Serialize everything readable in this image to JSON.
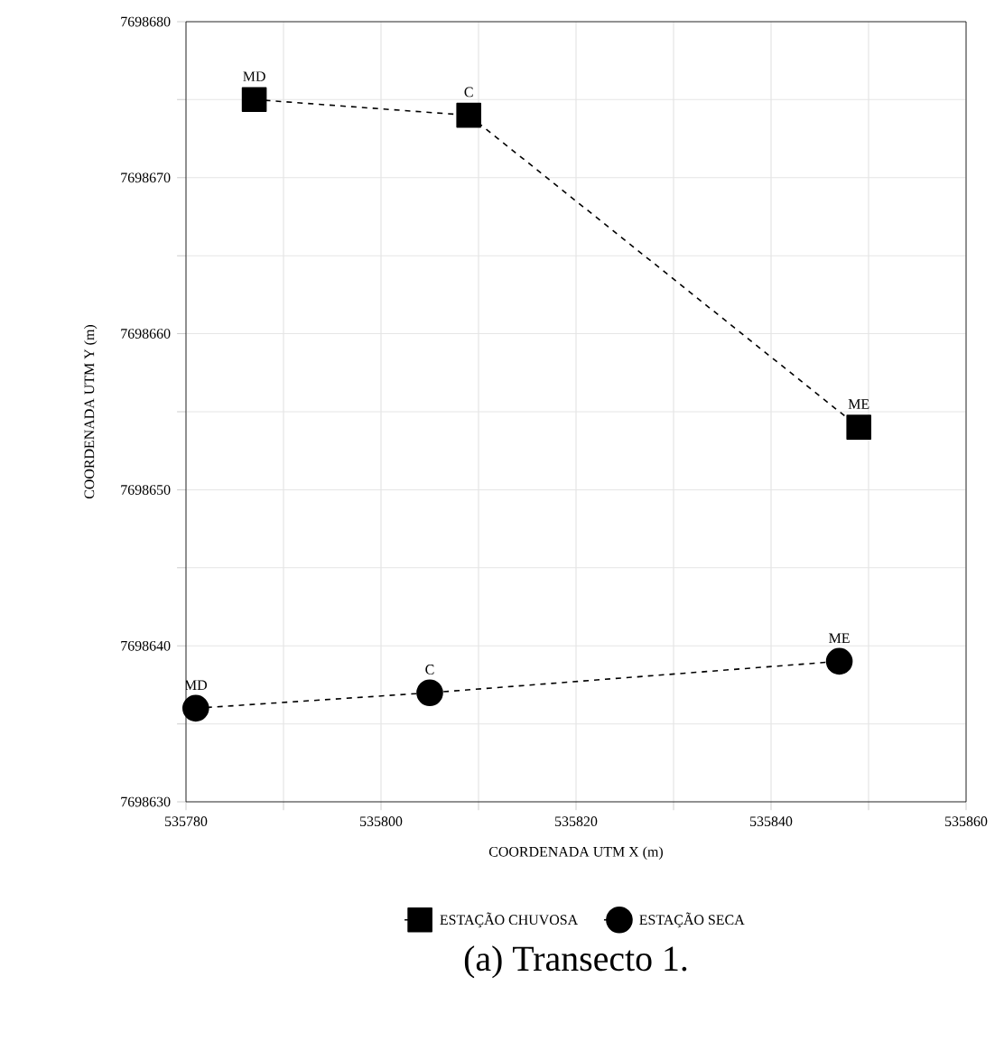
{
  "chart_data": {
    "type": "line",
    "title": "(a) Transecto 1.",
    "xlabel": "COORDENADA UTM X (m)",
    "ylabel": "COORDENADA UTM Y (m)",
    "series": [
      {
        "name": "ESTAÇÃO CHUVOSA",
        "color": "#000000",
        "marker": "square",
        "line_style": "dashed",
        "x": [
          535787,
          535809,
          535849
        ],
        "values": [
          7698675,
          7698674,
          7698654
        ]
      },
      {
        "name": "ESTAÇÃO SECA",
        "color": "#000000",
        "marker": "circle",
        "line_style": "dashed",
        "x": [
          535781,
          535805,
          535847
        ],
        "values": [
          7698636,
          7698637,
          7698639
        ]
      }
    ],
    "annotations": [
      {
        "text": "MD",
        "x": 535787,
        "y": 7698675
      },
      {
        "text": "C",
        "x": 535809,
        "y": 7698674
      },
      {
        "text": "ME",
        "x": 535849,
        "y": 7698654
      },
      {
        "text": "MD",
        "x": 535781,
        "y": 7698636
      },
      {
        "text": "C",
        "x": 535805,
        "y": 7698637
      },
      {
        "text": "ME",
        "x": 535847,
        "y": 7698639
      }
    ],
    "xlim": [
      535780,
      535860
    ],
    "xticks": [
      535780,
      {
        "value": 535790,
        "label": null
      },
      535800,
      {
        "value": 535810,
        "label": null
      },
      535820,
      {
        "value": 535830,
        "label": null
      },
      535840,
      {
        "value": 535850,
        "label": null
      },
      535860
    ],
    "ylim": [
      7698630,
      7698680
    ],
    "yticks": [
      7698630,
      {
        "value": 7698635,
        "label": null
      },
      7698640,
      {
        "value": 7698645,
        "label": null
      },
      7698650,
      {
        "value": 7698655,
        "label": null
      },
      7698660,
      {
        "value": 7698665,
        "label": null
      },
      7698670,
      {
        "value": 7698675,
        "label": null
      },
      7698680
    ],
    "grid": true,
    "legend": "bottom"
  }
}
